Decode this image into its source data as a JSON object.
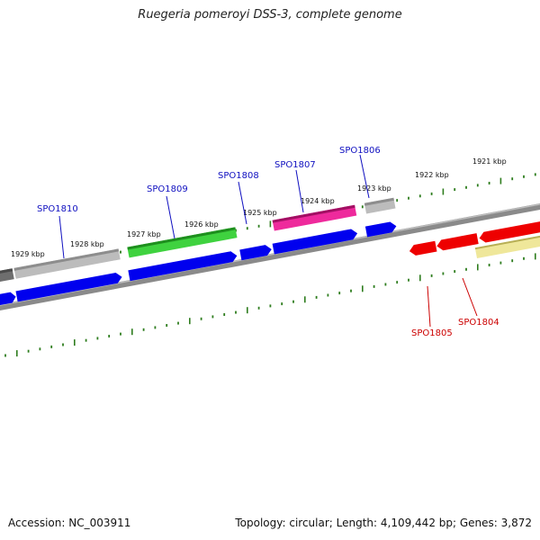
{
  "title": "Ruegeria pomeroyi DSS-3, complete genome",
  "footer": {
    "accession": "Accession: NC_003911",
    "summary": "Topology: circular; Length: 4,109,442 bp; Genes: 3,872"
  },
  "colors": {
    "backbone": "#7f7f7f",
    "tick": "#2e7d1e",
    "upper_label": "#1010c0",
    "lower_label": "#cc0000",
    "blue_gene": "#0000ee",
    "red_gene": "#ee0000",
    "gray_feature": "#b8b8b8",
    "green_feature": "#2fb52f",
    "magenta_feature": "#e01a8f",
    "khaki_feature": "#efe79a"
  },
  "scale_labels": [
    "1929 kbp",
    "1928 kbp",
    "1927 kbp",
    "1926 kbp",
    "1925 kbp",
    "1924 kbp",
    "1923 kbp",
    "1922 kbp",
    "1921 kbp"
  ],
  "upper_genes": [
    "SPO1810",
    "SPO1809",
    "SPO1808",
    "SPO1807",
    "SPO1806"
  ],
  "lower_genes": [
    "SPO1805",
    "SPO1804"
  ]
}
